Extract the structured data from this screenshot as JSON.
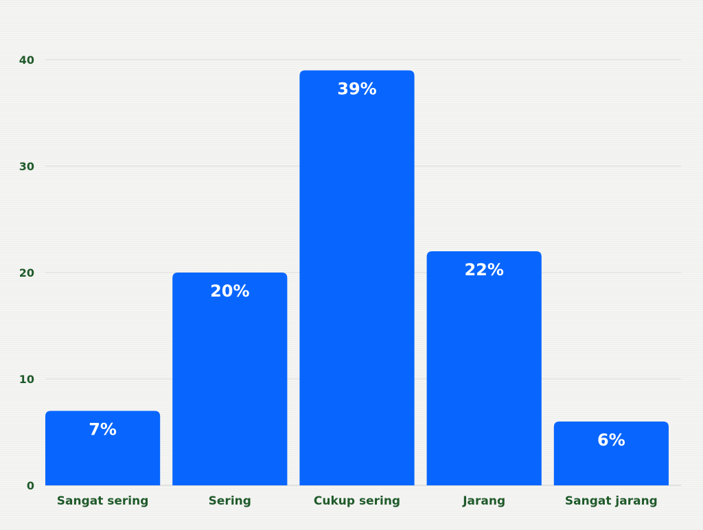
{
  "chart_data": {
    "type": "bar",
    "title": "",
    "xlabel": "",
    "ylabel": "",
    "categories": [
      "Sangat sering",
      "Sering",
      "Cukup sering",
      "Jarang",
      "Sangat jarang"
    ],
    "values": [
      7,
      20,
      39,
      22,
      6
    ],
    "data_labels": [
      "7%",
      "20%",
      "39%",
      "22%",
      "6%"
    ],
    "ylim": [
      0,
      40
    ],
    "yticks": [
      "0",
      "10",
      "20",
      "30",
      "40"
    ],
    "grid": true,
    "legend": "none",
    "colors": {
      "bar": "#0866ff",
      "axis_text": "#1f5a2a",
      "grid": "#dcdcdc",
      "label": "#ffffff"
    }
  }
}
